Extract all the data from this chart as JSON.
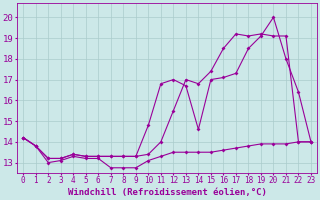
{
  "background_color": "#cce8e8",
  "grid_color": "#aacccc",
  "line_color": "#990099",
  "xlabel": "Windchill (Refroidissement éolien,°C)",
  "xlabel_fontsize": 6.5,
  "ytick_fontsize": 6.5,
  "xtick_fontsize": 5.5,
  "xlim": [
    -0.5,
    23.5
  ],
  "ylim": [
    12.5,
    20.7
  ],
  "yticks": [
    13,
    14,
    15,
    16,
    17,
    18,
    19,
    20
  ],
  "xticks": [
    0,
    1,
    2,
    3,
    4,
    5,
    6,
    7,
    8,
    9,
    10,
    11,
    12,
    13,
    14,
    15,
    16,
    17,
    18,
    19,
    20,
    21,
    22,
    23
  ],
  "curve1_x": [
    0,
    1,
    2,
    3,
    4,
    5,
    6,
    7,
    8,
    9,
    10,
    11,
    12,
    13,
    14,
    15,
    16,
    17,
    18,
    19,
    20,
    21,
    22,
    23
  ],
  "curve1_y": [
    14.2,
    13.8,
    13.0,
    13.1,
    13.3,
    13.2,
    13.2,
    12.75,
    12.75,
    12.75,
    13.1,
    13.3,
    13.5,
    13.5,
    13.5,
    13.5,
    13.6,
    13.7,
    13.8,
    13.9,
    13.9,
    13.9,
    14.0,
    14.0
  ],
  "curve2_x": [
    0,
    1,
    2,
    3,
    4,
    5,
    6,
    7,
    8,
    9,
    10,
    11,
    12,
    13,
    14,
    15,
    16,
    17,
    18,
    19,
    20,
    21,
    22,
    23
  ],
  "curve2_y": [
    14.2,
    13.8,
    13.2,
    13.2,
    13.4,
    13.3,
    13.3,
    13.3,
    13.3,
    13.3,
    14.8,
    16.8,
    17.0,
    16.7,
    14.6,
    17.0,
    17.1,
    17.3,
    18.5,
    19.1,
    20.0,
    18.0,
    16.4,
    14.0
  ],
  "curve3_x": [
    0,
    1,
    2,
    3,
    4,
    5,
    6,
    7,
    8,
    9,
    10,
    11,
    12,
    13,
    14,
    15,
    16,
    17,
    18,
    19,
    20,
    21,
    22,
    23
  ],
  "curve3_y": [
    14.2,
    13.8,
    13.2,
    13.2,
    13.4,
    13.3,
    13.3,
    13.3,
    13.3,
    13.3,
    13.4,
    14.0,
    15.5,
    17.0,
    16.8,
    17.4,
    18.5,
    19.2,
    19.1,
    19.2,
    19.1,
    19.1,
    14.0,
    14.0
  ]
}
